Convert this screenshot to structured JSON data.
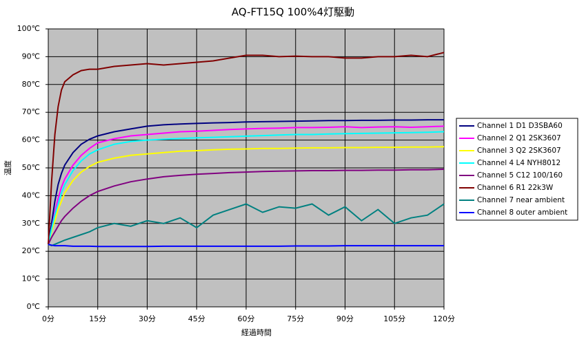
{
  "chart_data": {
    "type": "line",
    "title": "AQ-FT15Q 100%4灯駆動",
    "x_label": "経過時間",
    "y_label": "温度",
    "x": [
      0,
      1,
      2,
      3,
      4,
      5,
      7.5,
      10,
      12.5,
      15,
      20,
      25,
      30,
      35,
      40,
      45,
      50,
      55,
      60,
      65,
      70,
      75,
      80,
      85,
      90,
      95,
      100,
      105,
      110,
      115,
      120
    ],
    "xlim": [
      0,
      120
    ],
    "xticks": [
      {
        "value": 0,
        "label": "0分"
      },
      {
        "value": 15,
        "label": "15分"
      },
      {
        "value": 30,
        "label": "30分"
      },
      {
        "value": 45,
        "label": "45分"
      },
      {
        "value": 60,
        "label": "60分"
      },
      {
        "value": 75,
        "label": "75分"
      },
      {
        "value": 90,
        "label": "90分"
      },
      {
        "value": 105,
        "label": "105分"
      },
      {
        "value": 120,
        "label": "120分"
      }
    ],
    "ylim": [
      0,
      100
    ],
    "yticks": [
      {
        "value": 0,
        "label": "0℃"
      },
      {
        "value": 10,
        "label": "10℃"
      },
      {
        "value": 20,
        "label": "20℃"
      },
      {
        "value": 30,
        "label": "30℃"
      },
      {
        "value": 40,
        "label": "40℃"
      },
      {
        "value": 50,
        "label": "50℃"
      },
      {
        "value": 60,
        "label": "60℃"
      },
      {
        "value": 70,
        "label": "70℃"
      },
      {
        "value": 80,
        "label": "80℃"
      },
      {
        "value": 90,
        "label": "90℃"
      },
      {
        "value": 100,
        "label": "100℃"
      }
    ],
    "grid": true,
    "legend": "right",
    "series": [
      {
        "name": "Channel 1  D1  D3SBA60",
        "color": "#000080",
        "values": [
          22.5,
          30,
          38,
          44,
          48,
          51,
          55.5,
          58.5,
          60.3,
          61.5,
          63,
          64,
          65,
          65.5,
          65.8,
          66,
          66.2,
          66.3,
          66.5,
          66.6,
          66.7,
          66.8,
          66.9,
          67,
          67,
          67.1,
          67.1,
          67.2,
          67.2,
          67.3,
          67.3
        ]
      },
      {
        "name": "Channel 2  Q1  2SK3607",
        "color": "#ff00ff",
        "values": [
          22.5,
          28,
          34,
          39,
          43,
          46,
          51,
          54.5,
          57,
          59,
          60.5,
          61.5,
          62,
          62.5,
          63,
          63.2,
          63.5,
          63.8,
          64,
          64.2,
          64.3,
          64.5,
          64.5,
          64.6,
          64.8,
          64.5,
          64.7,
          64.8,
          64.6,
          64.8,
          65
        ]
      },
      {
        "name": "Channel 3  Q2  2SK3607",
        "color": "#ffff00",
        "values": [
          22.5,
          27,
          31,
          35,
          38,
          41,
          45.5,
          48.5,
          50.5,
          52,
          53.5,
          54.5,
          55,
          55.5,
          56,
          56.2,
          56.5,
          56.7,
          56.8,
          57,
          57,
          57.1,
          57.2,
          57.2,
          57.3,
          57.3,
          57.4,
          57.4,
          57.5,
          57.5,
          57.6
        ]
      },
      {
        "name": "Channel 4  L4  NYH8012",
        "color": "#00ffff",
        "values": [
          22.5,
          28,
          33,
          37,
          41,
          44,
          49,
          52.5,
          55,
          56.5,
          58.5,
          59.5,
          60,
          60.3,
          60.6,
          60.8,
          61,
          61.2,
          61.4,
          61.6,
          61.8,
          62,
          62,
          62.2,
          62.3,
          62.4,
          62.5,
          62.6,
          62.7,
          62.8,
          63
        ]
      },
      {
        "name": "Channel 5  C12  100/160",
        "color": "#800080",
        "values": [
          22.5,
          25,
          27,
          29,
          31,
          32.5,
          35.5,
          38,
          40,
          41.5,
          43.5,
          45,
          46,
          46.8,
          47.3,
          47.7,
          48,
          48.3,
          48.5,
          48.7,
          48.8,
          48.9,
          49,
          49,
          49.1,
          49.1,
          49.2,
          49.2,
          49.3,
          49.3,
          49.5
        ]
      },
      {
        "name": "Channel 6  R1  22k3W",
        "color": "#800000",
        "values": [
          22.5,
          45,
          62,
          72,
          78,
          81,
          83.5,
          85,
          85.5,
          85.5,
          86.5,
          87,
          87.5,
          87,
          87.5,
          88,
          88.5,
          89.5,
          90.5,
          90.5,
          90,
          90.2,
          90,
          90,
          89.5,
          89.5,
          90,
          90,
          90.5,
          90,
          91.5
        ]
      },
      {
        "name": "Channel 7  near ambient",
        "color": "#008080",
        "values": [
          22.5,
          22,
          22.5,
          23,
          23.5,
          24,
          25,
          26,
          27,
          28.5,
          30,
          29,
          31,
          30,
          32,
          28.5,
          33,
          35,
          37,
          34,
          36,
          35.5,
          37,
          33,
          36,
          31,
          35,
          30,
          32,
          33,
          37
        ]
      },
      {
        "name": "Channel 8  outer ambient",
        "color": "#0000ff",
        "values": [
          22.5,
          22.2,
          22,
          22,
          22,
          22,
          21.8,
          21.8,
          21.8,
          21.7,
          21.7,
          21.7,
          21.7,
          21.8,
          21.8,
          21.8,
          21.8,
          21.8,
          21.8,
          21.8,
          21.8,
          21.9,
          21.9,
          21.9,
          22,
          22,
          22,
          22,
          22,
          22,
          22
        ]
      }
    ]
  }
}
